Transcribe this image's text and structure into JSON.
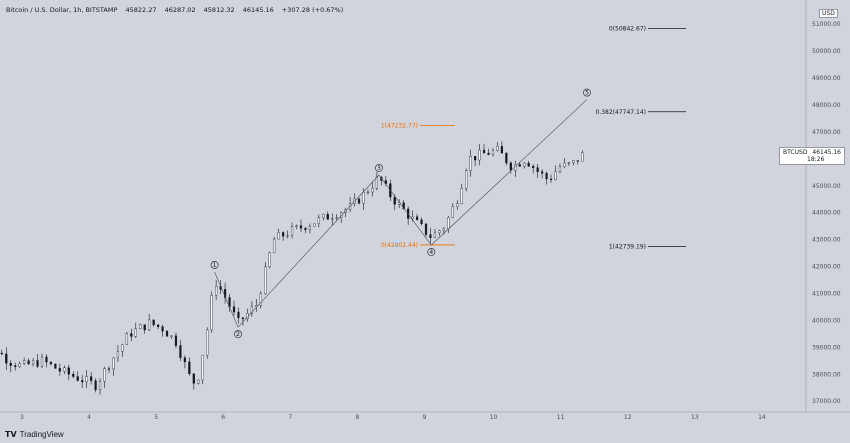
{
  "header": {
    "symbol": "Bitcoin / U.S. Dollar, 1h, BITSTAMP",
    "open": "45822.27",
    "high": "46287.02",
    "low": "45812.32",
    "close": "46145.16",
    "change": "+307.28 (+0.67%)"
  },
  "currency_label": "USD",
  "price_badge": {
    "ticker": "BTCUSD",
    "price": "46145.16",
    "countdown": "18:26"
  },
  "logo": "TradingView",
  "colors": {
    "background": "#d1d4dc",
    "candle": "#131722",
    "fib_black": "#131722",
    "fib_orange": "#ef6c00",
    "wave_line": "#4a4e59"
  },
  "chart_data": {
    "type": "candlestick",
    "x_ticks": [
      "3",
      "4",
      "5",
      "6",
      "7",
      "8",
      "9",
      "10",
      "11",
      "12",
      "13",
      "14"
    ],
    "y_ticks": [
      "37000.00",
      "38000.00",
      "39000.00",
      "40000.00",
      "41000.00",
      "42000.00",
      "43000.00",
      "44000.00",
      "45000.00",
      "46000.00",
      "47000.00",
      "48000.00",
      "49000.00",
      "50000.00",
      "51000.00"
    ],
    "ylim": [
      36600,
      51600
    ],
    "fib_levels_black": [
      {
        "label": "0(50842.67)",
        "value": 50842.67
      },
      {
        "label": "0.382(47747.14)",
        "value": 47747.14
      },
      {
        "label": "1(42739.19)",
        "value": 42739.19
      }
    ],
    "fib_levels_orange": [
      {
        "label": "1(47232.77)",
        "value": 47232.77
      },
      {
        "label": "0(42802.44)",
        "value": 42802.44
      }
    ],
    "waves": [
      {
        "label": "1",
        "x": 5.87,
        "price": 41800
      },
      {
        "label": "2",
        "x": 6.22,
        "price": 39750
      },
      {
        "label": "3",
        "x": 8.32,
        "price": 45400
      },
      {
        "label": "4",
        "x": 9.1,
        "price": 42800
      },
      {
        "label": "5",
        "x": 11.42,
        "price": 48200
      }
    ],
    "path": [
      {
        "x": 2.3,
        "p": 39800
      },
      {
        "x": 2.5,
        "p": 39200
      },
      {
        "x": 2.8,
        "p": 38500
      },
      {
        "x": 3.0,
        "p": 38300
      },
      {
        "x": 3.3,
        "p": 38500
      },
      {
        "x": 3.6,
        "p": 38100
      },
      {
        "x": 3.9,
        "p": 37800
      },
      {
        "x": 4.1,
        "p": 37600
      },
      {
        "x": 4.3,
        "p": 38400
      },
      {
        "x": 4.6,
        "p": 39500
      },
      {
        "x": 4.9,
        "p": 39900
      },
      {
        "x": 5.1,
        "p": 39700
      },
      {
        "x": 5.3,
        "p": 39200
      },
      {
        "x": 5.5,
        "p": 37900
      },
      {
        "x": 5.6,
        "p": 37600
      },
      {
        "x": 5.75,
        "p": 39500
      },
      {
        "x": 5.87,
        "p": 41500
      },
      {
        "x": 6.0,
        "p": 41000
      },
      {
        "x": 6.22,
        "p": 39900
      },
      {
        "x": 6.5,
        "p": 40600
      },
      {
        "x": 6.75,
        "p": 43000
      },
      {
        "x": 7.0,
        "p": 43300
      },
      {
        "x": 7.3,
        "p": 43600
      },
      {
        "x": 7.6,
        "p": 43900
      },
      {
        "x": 7.9,
        "p": 44200
      },
      {
        "x": 8.1,
        "p": 44700
      },
      {
        "x": 8.32,
        "p": 45300
      },
      {
        "x": 8.5,
        "p": 44600
      },
      {
        "x": 8.8,
        "p": 43800
      },
      {
        "x": 9.1,
        "p": 43100
      },
      {
        "x": 9.3,
        "p": 43500
      },
      {
        "x": 9.5,
        "p": 44600
      },
      {
        "x": 9.65,
        "p": 46000
      },
      {
        "x": 9.9,
        "p": 46200
      },
      {
        "x": 10.1,
        "p": 46300
      },
      {
        "x": 10.3,
        "p": 45700
      },
      {
        "x": 10.5,
        "p": 46000
      },
      {
        "x": 10.7,
        "p": 45500
      },
      {
        "x": 10.85,
        "p": 45200
      },
      {
        "x": 11.0,
        "p": 45700
      },
      {
        "x": 11.2,
        "p": 45800
      },
      {
        "x": 11.35,
        "p": 46145
      }
    ]
  }
}
